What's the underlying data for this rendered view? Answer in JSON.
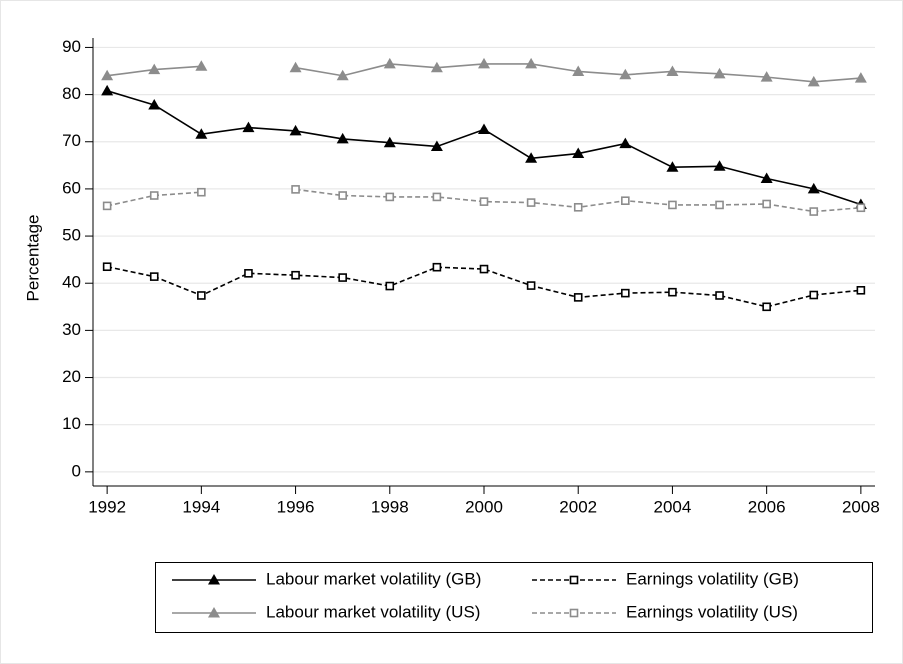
{
  "chart_data": {
    "type": "line",
    "y_label": "Percentage",
    "x": [
      1992,
      1993,
      1994,
      1995,
      1996,
      1997,
      1998,
      1999,
      2000,
      2001,
      2002,
      2003,
      2004,
      2005,
      2006,
      2007,
      2008
    ],
    "series": [
      {
        "name": "Labour market volatility (GB)",
        "color": "#000000",
        "dash": false,
        "marker": "triangle",
        "values": [
          80.8,
          77.8,
          71.6,
          73.0,
          72.3,
          70.6,
          69.8,
          69.0,
          72.6,
          66.5,
          67.5,
          69.6,
          64.6,
          64.8,
          62.2,
          60.0,
          56.7
        ]
      },
      {
        "name": "Earnings volatility (GB)",
        "color": "#000000",
        "dash": true,
        "marker": "square",
        "values": [
          43.5,
          41.4,
          37.4,
          42.1,
          41.7,
          41.2,
          39.4,
          43.4,
          43.0,
          39.5,
          37.0,
          37.9,
          38.1,
          37.4,
          35.0,
          37.5,
          38.5
        ]
      },
      {
        "name": "Labour market volatility (US)",
        "color": "#8c8c8c",
        "dash": false,
        "marker": "triangle",
        "values": [
          84.0,
          85.3,
          86.0,
          null,
          85.7,
          84.0,
          86.5,
          85.7,
          86.5,
          86.5,
          84.9,
          84.2,
          84.9,
          84.4,
          83.7,
          82.7,
          83.5
        ]
      },
      {
        "name": "Earnings volatility (US)",
        "color": "#8c8c8c",
        "dash": true,
        "marker": "square",
        "values": [
          56.4,
          58.6,
          59.3,
          null,
          59.9,
          58.6,
          58.3,
          58.3,
          57.3,
          57.1,
          56.1,
          57.5,
          56.6,
          56.6,
          56.8,
          55.2,
          56.0
        ]
      }
    ],
    "xlim": [
      1991.7,
      2008.3
    ],
    "xticks": [
      1992,
      1994,
      1996,
      1998,
      2000,
      2002,
      2004,
      2006,
      2008
    ],
    "ylim": [
      -3,
      92
    ],
    "yticks": [
      0,
      10,
      20,
      30,
      40,
      50,
      60,
      70,
      80,
      90
    ],
    "grid": true,
    "legend": "bottom"
  }
}
